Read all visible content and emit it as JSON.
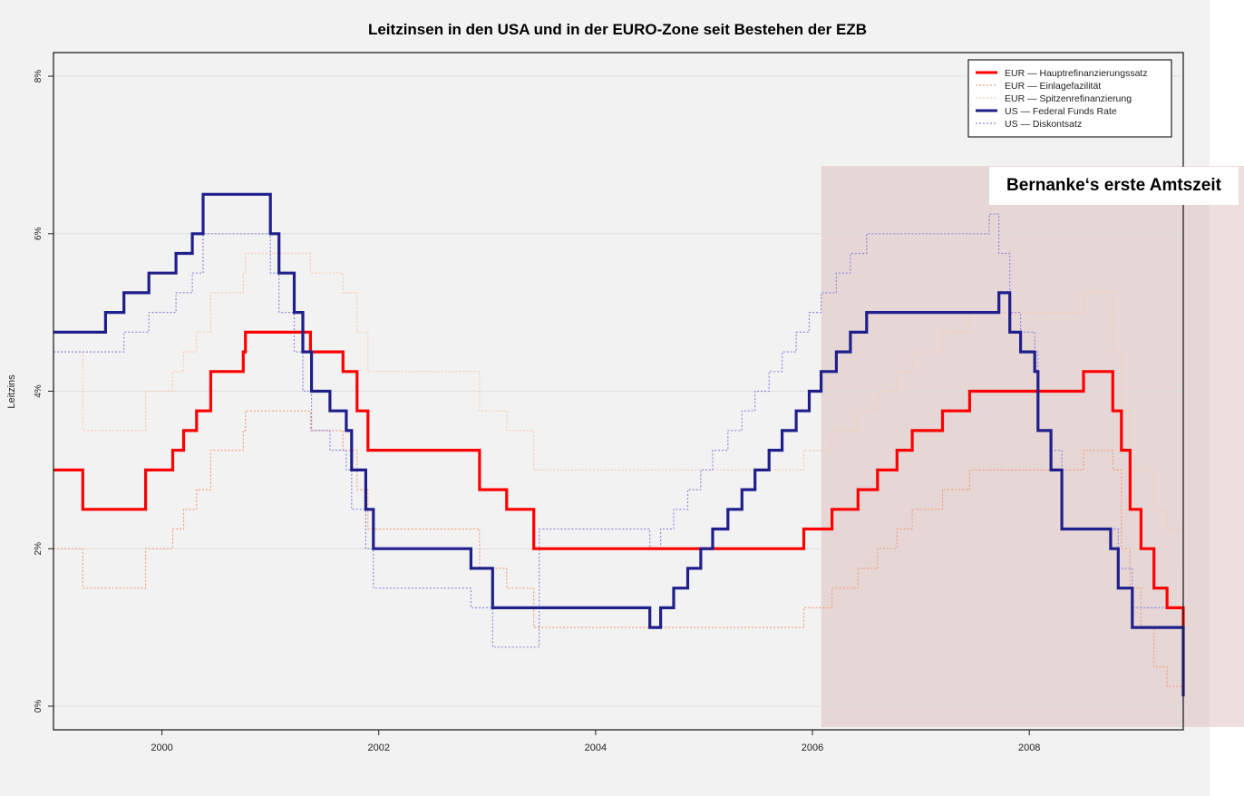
{
  "chart_data": {
    "type": "line",
    "step": true,
    "title": "Leitzinsen in den USA und in der EURO-Zone seit Bestehen der EZB",
    "xlabel": "",
    "ylabel": "Leitzins",
    "xlim": [
      1999.0,
      2009.42
    ],
    "ylim": [
      -0.3,
      8.3
    ],
    "x_ticks": [
      2000,
      2002,
      2004,
      2006,
      2008
    ],
    "x_tick_labels": [
      "2000",
      "2002",
      "2004",
      "2006",
      "2008"
    ],
    "y_ticks": [
      0,
      2,
      4,
      6,
      8
    ],
    "y_tick_labels": [
      "0%",
      "2%",
      "4%",
      "6%",
      "8%"
    ],
    "grid": true,
    "legend_position": "top-right",
    "highlight": {
      "x_start": 2006.08,
      "x_end": 2009.42,
      "label": "Bernanke‘s erste Amtszeit",
      "color": "#d2a8a8"
    },
    "series": [
      {
        "name": "EUR — Hauptrefinanzierungssatz",
        "color": "#ff0000",
        "dash": "solid",
        "width": 3.2,
        "x": [
          1999.0,
          1999.27,
          1999.85,
          2000.1,
          2000.2,
          2000.32,
          2000.45,
          2000.52,
          2000.75,
          2000.77,
          2001.37,
          2001.67,
          2001.8,
          2001.9,
          2002.93,
          2003.18,
          2003.43,
          2005.92,
          2006.18,
          2006.42,
          2006.6,
          2006.78,
          2006.92,
          2007.2,
          2007.45,
          2008.5,
          2008.77,
          2008.85,
          2008.93,
          2009.03,
          2009.15,
          2009.27,
          2009.42
        ],
        "y": [
          3.0,
          2.5,
          3.0,
          3.25,
          3.5,
          3.75,
          4.25,
          4.25,
          4.5,
          4.75,
          4.5,
          4.25,
          3.75,
          3.25,
          2.75,
          2.5,
          2.0,
          2.25,
          2.5,
          2.75,
          3.0,
          3.25,
          3.5,
          3.75,
          4.0,
          4.25,
          3.75,
          3.25,
          2.5,
          2.0,
          1.5,
          1.25,
          1.0
        ]
      },
      {
        "name": "EUR — Einlagefazilität",
        "color": "#f4a07a",
        "dash": "dotted",
        "width": 1.2,
        "x": [
          1999.0,
          1999.27,
          1999.85,
          2000.1,
          2000.2,
          2000.32,
          2000.45,
          2000.52,
          2000.75,
          2000.77,
          2001.37,
          2001.67,
          2001.8,
          2001.9,
          2002.93,
          2003.18,
          2003.43,
          2005.92,
          2006.18,
          2006.42,
          2006.6,
          2006.78,
          2006.92,
          2007.2,
          2007.45,
          2008.5,
          2008.77,
          2008.85,
          2008.93,
          2009.03,
          2009.15,
          2009.27,
          2009.42
        ],
        "y": [
          2.0,
          1.5,
          2.0,
          2.25,
          2.5,
          2.75,
          3.25,
          3.25,
          3.5,
          3.75,
          3.5,
          3.25,
          2.75,
          2.25,
          1.75,
          1.5,
          1.0,
          1.25,
          1.5,
          1.75,
          2.0,
          2.25,
          2.5,
          2.75,
          3.0,
          3.25,
          3.0,
          2.0,
          1.5,
          1.0,
          0.5,
          0.25,
          0.25
        ]
      },
      {
        "name": "EUR — Spitzenrefinanzierung",
        "color": "#f9c8b0",
        "dash": "dotted",
        "width": 1.2,
        "x": [
          1999.0,
          1999.27,
          1999.85,
          2000.1,
          2000.2,
          2000.32,
          2000.45,
          2000.52,
          2000.75,
          2000.77,
          2001.37,
          2001.67,
          2001.8,
          2001.9,
          2002.93,
          2003.18,
          2003.43,
          2005.92,
          2006.18,
          2006.42,
          2006.6,
          2006.78,
          2006.92,
          2007.2,
          2007.45,
          2008.5,
          2008.77,
          2008.85,
          2008.93,
          2009.03,
          2009.15,
          2009.27,
          2009.42
        ],
        "y": [
          4.5,
          3.5,
          4.0,
          4.25,
          4.5,
          4.75,
          5.25,
          5.25,
          5.5,
          5.75,
          5.5,
          5.25,
          4.75,
          4.25,
          3.75,
          3.5,
          3.0,
          3.25,
          3.5,
          3.75,
          4.0,
          4.25,
          4.5,
          4.75,
          5.0,
          5.25,
          4.5,
          3.75,
          3.0,
          3.0,
          2.5,
          2.25,
          1.75
        ]
      },
      {
        "name": "US — Federal Funds Rate",
        "color": "#1f1f8c",
        "dash": "solid",
        "width": 3.2,
        "x": [
          1999.0,
          1999.48,
          1999.65,
          1999.88,
          2000.13,
          2000.28,
          2000.38,
          2001.0,
          2001.08,
          2001.22,
          2001.3,
          2001.38,
          2001.55,
          2001.7,
          2001.75,
          2001.88,
          2001.95,
          2002.85,
          2003.05,
          2004.5,
          2004.6,
          2004.72,
          2004.85,
          2004.97,
          2005.08,
          2005.22,
          2005.35,
          2005.47,
          2005.6,
          2005.72,
          2005.85,
          2005.97,
          2006.08,
          2006.22,
          2006.35,
          2006.5,
          2007.72,
          2007.82,
          2007.92,
          2008.05,
          2008.08,
          2008.2,
          2008.3,
          2008.75,
          2008.82,
          2008.95,
          2009.42
        ],
        "y": [
          4.75,
          5.0,
          5.25,
          5.5,
          5.75,
          6.0,
          6.5,
          6.0,
          5.5,
          5.0,
          4.5,
          4.0,
          3.75,
          3.5,
          3.0,
          2.5,
          2.0,
          1.75,
          1.25,
          1.0,
          1.25,
          1.5,
          1.75,
          2.0,
          2.25,
          2.5,
          2.75,
          3.0,
          3.25,
          3.5,
          3.75,
          4.0,
          4.25,
          4.5,
          4.75,
          5.0,
          5.25,
          4.75,
          4.5,
          4.25,
          3.5,
          3.0,
          2.25,
          2.0,
          1.5,
          1.0,
          0.125
        ]
      },
      {
        "name": "US — Diskontsatz",
        "color": "#8c8cdc",
        "dash": "dotted",
        "width": 1.2,
        "x": [
          1999.0,
          1999.65,
          1999.88,
          2000.13,
          2000.28,
          2000.38,
          2001.0,
          2001.08,
          2001.22,
          2001.3,
          2001.38,
          2001.55,
          2001.7,
          2001.75,
          2001.88,
          2001.95,
          2002.85,
          2003.05,
          2003.48,
          2004.5,
          2004.6,
          2004.72,
          2004.85,
          2004.97,
          2005.08,
          2005.22,
          2005.35,
          2005.47,
          2005.6,
          2005.72,
          2005.85,
          2005.97,
          2006.08,
          2006.22,
          2006.35,
          2006.5,
          2007.63,
          2007.72,
          2007.82,
          2007.92,
          2008.05,
          2008.08,
          2008.2,
          2008.3,
          2008.75,
          2008.82,
          2008.95,
          2009.42
        ],
        "y": [
          4.5,
          4.75,
          5.0,
          5.25,
          5.5,
          6.0,
          5.5,
          5.0,
          4.5,
          4.0,
          3.5,
          3.25,
          3.0,
          2.5,
          2.0,
          1.5,
          1.25,
          0.75,
          2.25,
          2.0,
          2.25,
          2.5,
          2.75,
          3.0,
          3.25,
          3.5,
          3.75,
          4.0,
          4.25,
          4.5,
          4.75,
          5.0,
          5.25,
          5.5,
          5.75,
          6.0,
          6.25,
          5.75,
          5.0,
          4.75,
          4.5,
          3.5,
          3.25,
          2.25,
          2.25,
          1.75,
          1.25,
          0.5
        ]
      }
    ]
  }
}
